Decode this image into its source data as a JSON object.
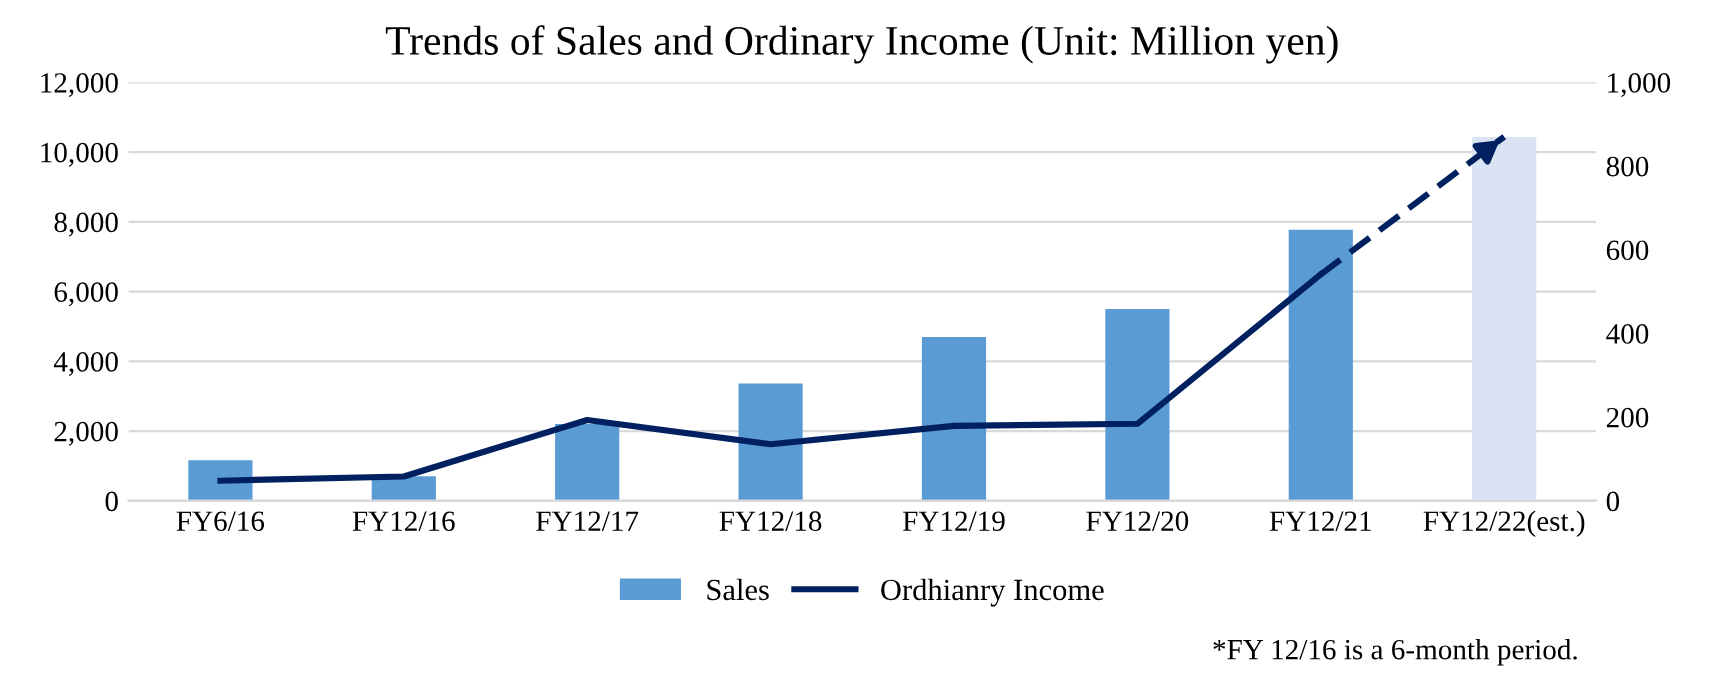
{
  "chart_data": {
    "type": "bar",
    "title": "Trends of Sales and Ordinary Income (Unit: Million yen)",
    "categories": [
      "FY6/16",
      "FY12/16",
      "FY12/17",
      "FY12/18",
      "FY12/19",
      "FY12/20",
      "FY12/21",
      "FY12/22(est.)"
    ],
    "series": [
      {
        "name": "Sales",
        "color": "#5b9bd5",
        "colors": [
          "#5b9bd5",
          "#5b9bd5",
          "#5b9bd5",
          "#5b9bd5",
          "#5b9bd5",
          "#5b9bd5",
          "#5b9bd5",
          "#dae3f3"
        ],
        "values": [
          1160,
          700,
          2200,
          3360,
          4700,
          5500,
          7770,
          10430
        ]
      },
      {
        "name": "Ordhianry Income",
        "type": "line",
        "axis": "y2",
        "color": "#002060",
        "line_style": "solid",
        "values": [
          48,
          58,
          193,
          135,
          179,
          184,
          541,
          null
        ]
      },
      {
        "type": "line",
        "axis": "y2",
        "color": "#002060",
        "line_style": "dashed",
        "values": [
          null,
          null,
          null,
          null,
          null,
          null,
          541,
          870
        ]
      }
    ],
    "ylim": [
      0,
      12000
    ],
    "yticks": [
      {
        "value": 0,
        "label": "0"
      },
      {
        "value": 2000,
        "label": "2,000"
      },
      {
        "value": 4000,
        "label": "4,000"
      },
      {
        "value": 6000,
        "label": "6,000"
      },
      {
        "value": 8000,
        "label": "8,000"
      },
      {
        "value": 10000,
        "label": "10,000"
      },
      {
        "value": 12000,
        "label": "12,000"
      }
    ],
    "y2lim": [
      0,
      1000
    ],
    "y2ticks": [
      0,
      200,
      400,
      600,
      800,
      {
        "value": 1000,
        "label": "1,000"
      }
    ],
    "grid": "y",
    "legend": "bottom",
    "marker": "none",
    "annotations": [
      "*FY 12/16 is a 6-month period."
    ]
  }
}
